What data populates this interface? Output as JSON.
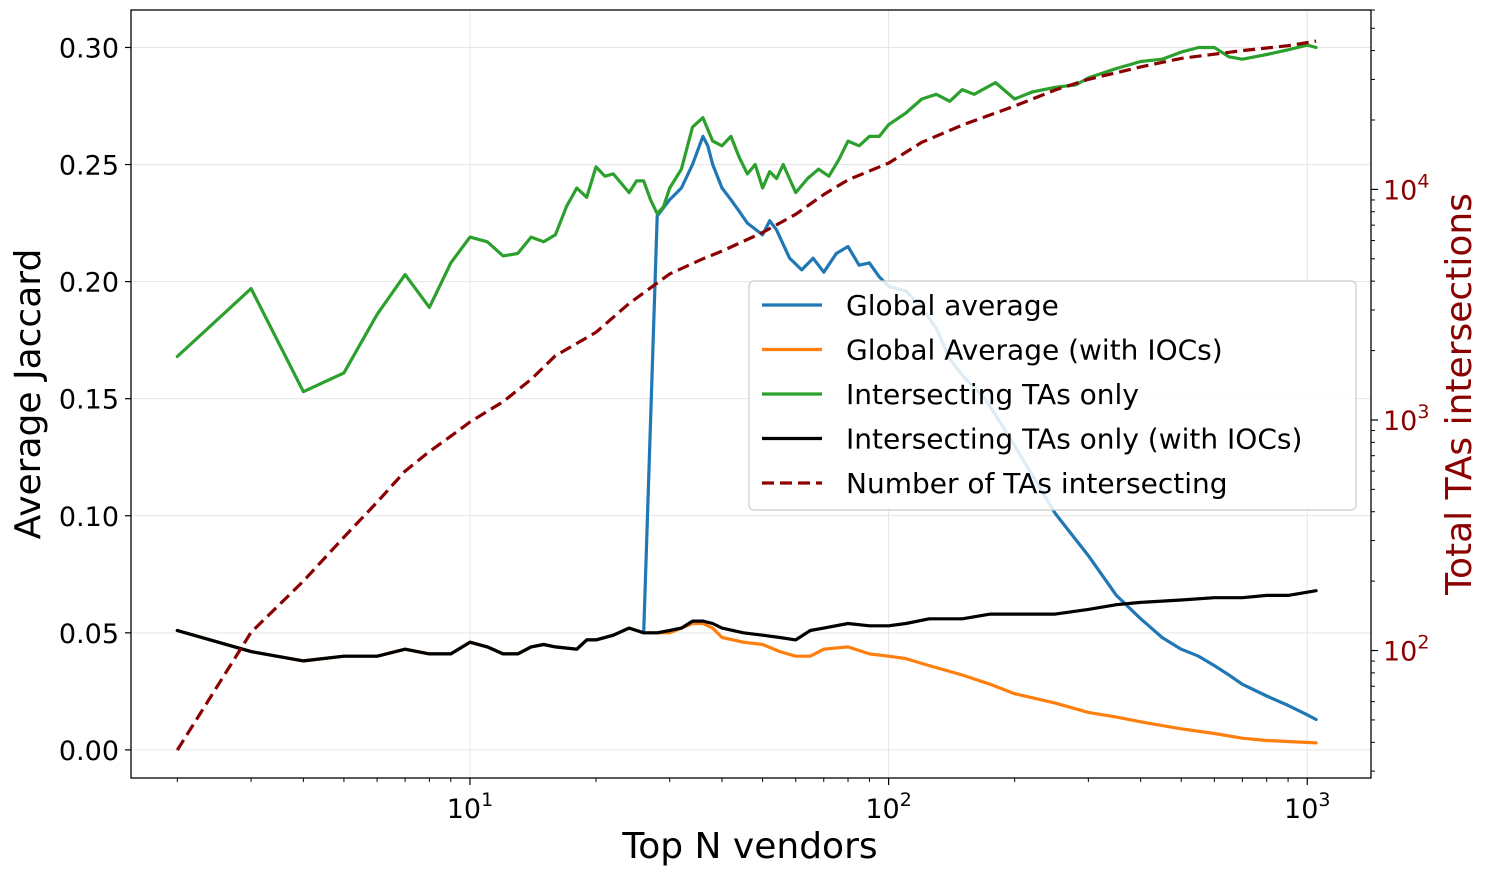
{
  "chart_data": {
    "type": "line",
    "xlabel": "Top N vendors",
    "ylabel": "Average Jaccard",
    "ylabel_right": "Total TAs intersections",
    "x_scale": "log",
    "y_right_scale": "log",
    "xlim": [
      1.55,
      1420
    ],
    "ylim": [
      -0.012,
      0.316
    ],
    "ylim_right": [
      28,
      60000
    ],
    "x_ticks": [
      {
        "value": 10,
        "base": "10",
        "exp": "1"
      },
      {
        "value": 100,
        "base": "10",
        "exp": "2"
      },
      {
        "value": 1000,
        "base": "10",
        "exp": "3"
      }
    ],
    "y_ticks": [
      0.0,
      0.05,
      0.1,
      0.15,
      0.2,
      0.25,
      0.3
    ],
    "y_tick_labels": [
      "0.00",
      "0.05",
      "0.10",
      "0.15",
      "0.20",
      "0.25",
      "0.30"
    ],
    "y_right_ticks": [
      {
        "value": 100,
        "base": "10",
        "exp": "2"
      },
      {
        "value": 1000,
        "base": "10",
        "exp": "3"
      },
      {
        "value": 10000,
        "base": "10",
        "exp": "4"
      }
    ],
    "grid": true,
    "legend_position": "center-right",
    "series": [
      {
        "name": "Global average",
        "color": "#1f77b4",
        "style": "solid",
        "axis": "left",
        "points": [
          [
            2,
            0.051
          ],
          [
            3,
            0.042
          ],
          [
            4,
            0.038
          ],
          [
            5,
            0.04
          ],
          [
            6,
            0.04
          ],
          [
            7,
            0.043
          ],
          [
            8,
            0.041
          ],
          [
            9,
            0.041
          ],
          [
            10,
            0.046
          ],
          [
            11,
            0.044
          ],
          [
            12,
            0.041
          ],
          [
            13,
            0.041
          ],
          [
            14,
            0.044
          ],
          [
            15,
            0.045
          ],
          [
            16,
            0.044
          ],
          [
            18,
            0.043
          ],
          [
            19,
            0.047
          ],
          [
            20,
            0.047
          ],
          [
            22,
            0.049
          ],
          [
            24,
            0.052
          ],
          [
            26,
            0.05
          ],
          [
            28,
            0.228
          ],
          [
            30,
            0.235
          ],
          [
            32,
            0.24
          ],
          [
            34,
            0.25
          ],
          [
            36,
            0.262
          ],
          [
            37,
            0.258
          ],
          [
            38,
            0.25
          ],
          [
            40,
            0.24
          ],
          [
            42,
            0.235
          ],
          [
            44,
            0.23
          ],
          [
            46,
            0.225
          ],
          [
            50,
            0.22
          ],
          [
            52,
            0.226
          ],
          [
            54,
            0.222
          ],
          [
            58,
            0.21
          ],
          [
            62,
            0.205
          ],
          [
            66,
            0.21
          ],
          [
            70,
            0.204
          ],
          [
            75,
            0.212
          ],
          [
            80,
            0.215
          ],
          [
            85,
            0.207
          ],
          [
            90,
            0.208
          ],
          [
            95,
            0.202
          ],
          [
            100,
            0.198
          ],
          [
            110,
            0.196
          ],
          [
            120,
            0.189
          ],
          [
            130,
            0.18
          ],
          [
            140,
            0.167
          ],
          [
            150,
            0.16
          ],
          [
            170,
            0.15
          ],
          [
            200,
            0.13
          ],
          [
            250,
            0.101
          ],
          [
            300,
            0.083
          ],
          [
            350,
            0.066
          ],
          [
            400,
            0.056
          ],
          [
            450,
            0.048
          ],
          [
            500,
            0.043
          ],
          [
            550,
            0.04
          ],
          [
            600,
            0.036
          ],
          [
            650,
            0.032
          ],
          [
            700,
            0.028
          ],
          [
            800,
            0.023
          ],
          [
            900,
            0.019
          ],
          [
            1000,
            0.015
          ],
          [
            1050,
            0.013
          ]
        ]
      },
      {
        "name": "Global Average (with IOCs)",
        "color": "#ff7f0e",
        "style": "solid",
        "axis": "left",
        "points": [
          [
            2,
            0.051
          ],
          [
            3,
            0.042
          ],
          [
            4,
            0.038
          ],
          [
            5,
            0.04
          ],
          [
            6,
            0.04
          ],
          [
            7,
            0.043
          ],
          [
            8,
            0.041
          ],
          [
            9,
            0.041
          ],
          [
            10,
            0.046
          ],
          [
            11,
            0.044
          ],
          [
            12,
            0.041
          ],
          [
            13,
            0.041
          ],
          [
            14,
            0.044
          ],
          [
            15,
            0.045
          ],
          [
            16,
            0.044
          ],
          [
            18,
            0.043
          ],
          [
            19,
            0.047
          ],
          [
            20,
            0.047
          ],
          [
            22,
            0.049
          ],
          [
            24,
            0.052
          ],
          [
            26,
            0.05
          ],
          [
            28,
            0.05
          ],
          [
            30,
            0.05
          ],
          [
            32,
            0.052
          ],
          [
            34,
            0.054
          ],
          [
            36,
            0.054
          ],
          [
            38,
            0.052
          ],
          [
            40,
            0.048
          ],
          [
            45,
            0.046
          ],
          [
            50,
            0.045
          ],
          [
            55,
            0.042
          ],
          [
            60,
            0.04
          ],
          [
            65,
            0.04
          ],
          [
            70,
            0.043
          ],
          [
            80,
            0.044
          ],
          [
            90,
            0.041
          ],
          [
            100,
            0.04
          ],
          [
            110,
            0.039
          ],
          [
            125,
            0.036
          ],
          [
            150,
            0.032
          ],
          [
            175,
            0.028
          ],
          [
            200,
            0.024
          ],
          [
            250,
            0.02
          ],
          [
            300,
            0.016
          ],
          [
            350,
            0.014
          ],
          [
            400,
            0.012
          ],
          [
            500,
            0.009
          ],
          [
            600,
            0.007
          ],
          [
            700,
            0.005
          ],
          [
            800,
            0.004
          ],
          [
            1050,
            0.003
          ]
        ]
      },
      {
        "name": "Intersecting TAs only",
        "color": "#2ca02c",
        "style": "solid",
        "axis": "left",
        "points": [
          [
            2,
            0.168
          ],
          [
            3,
            0.197
          ],
          [
            4,
            0.153
          ],
          [
            5,
            0.161
          ],
          [
            6,
            0.186
          ],
          [
            7,
            0.203
          ],
          [
            8,
            0.189
          ],
          [
            9,
            0.208
          ],
          [
            10,
            0.219
          ],
          [
            11,
            0.217
          ],
          [
            12,
            0.211
          ],
          [
            13,
            0.212
          ],
          [
            14,
            0.219
          ],
          [
            15,
            0.217
          ],
          [
            16,
            0.22
          ],
          [
            17,
            0.232
          ],
          [
            18,
            0.24
          ],
          [
            19,
            0.236
          ],
          [
            20,
            0.249
          ],
          [
            21,
            0.245
          ],
          [
            22,
            0.246
          ],
          [
            24,
            0.238
          ],
          [
            25,
            0.243
          ],
          [
            26,
            0.243
          ],
          [
            27,
            0.235
          ],
          [
            28,
            0.229
          ],
          [
            29,
            0.232
          ],
          [
            30,
            0.24
          ],
          [
            32,
            0.248
          ],
          [
            34,
            0.266
          ],
          [
            36,
            0.27
          ],
          [
            38,
            0.26
          ],
          [
            40,
            0.258
          ],
          [
            42,
            0.262
          ],
          [
            44,
            0.253
          ],
          [
            46,
            0.246
          ],
          [
            48,
            0.25
          ],
          [
            50,
            0.24
          ],
          [
            52,
            0.247
          ],
          [
            54,
            0.244
          ],
          [
            56,
            0.25
          ],
          [
            60,
            0.238
          ],
          [
            64,
            0.244
          ],
          [
            68,
            0.248
          ],
          [
            72,
            0.245
          ],
          [
            76,
            0.252
          ],
          [
            80,
            0.26
          ],
          [
            85,
            0.258
          ],
          [
            90,
            0.262
          ],
          [
            95,
            0.262
          ],
          [
            100,
            0.267
          ],
          [
            110,
            0.272
          ],
          [
            120,
            0.278
          ],
          [
            130,
            0.28
          ],
          [
            140,
            0.277
          ],
          [
            150,
            0.282
          ],
          [
            160,
            0.28
          ],
          [
            180,
            0.285
          ],
          [
            200,
            0.278
          ],
          [
            220,
            0.281
          ],
          [
            250,
            0.283
          ],
          [
            280,
            0.284
          ],
          [
            300,
            0.287
          ],
          [
            350,
            0.291
          ],
          [
            400,
            0.294
          ],
          [
            450,
            0.295
          ],
          [
            500,
            0.298
          ],
          [
            550,
            0.3
          ],
          [
            600,
            0.3
          ],
          [
            650,
            0.296
          ],
          [
            700,
            0.295
          ],
          [
            800,
            0.297
          ],
          [
            900,
            0.299
          ],
          [
            1000,
            0.301
          ],
          [
            1050,
            0.3
          ]
        ]
      },
      {
        "name": "Intersecting TAs only (with IOCs)",
        "color": "#000000",
        "style": "solid",
        "axis": "left",
        "points": [
          [
            2,
            0.051
          ],
          [
            3,
            0.042
          ],
          [
            4,
            0.038
          ],
          [
            5,
            0.04
          ],
          [
            6,
            0.04
          ],
          [
            7,
            0.043
          ],
          [
            8,
            0.041
          ],
          [
            9,
            0.041
          ],
          [
            10,
            0.046
          ],
          [
            11,
            0.044
          ],
          [
            12,
            0.041
          ],
          [
            13,
            0.041
          ],
          [
            14,
            0.044
          ],
          [
            15,
            0.045
          ],
          [
            16,
            0.044
          ],
          [
            18,
            0.043
          ],
          [
            19,
            0.047
          ],
          [
            20,
            0.047
          ],
          [
            22,
            0.049
          ],
          [
            24,
            0.052
          ],
          [
            26,
            0.05
          ],
          [
            28,
            0.05
          ],
          [
            30,
            0.051
          ],
          [
            32,
            0.052
          ],
          [
            34,
            0.055
          ],
          [
            36,
            0.055
          ],
          [
            38,
            0.054
          ],
          [
            40,
            0.052
          ],
          [
            45,
            0.05
          ],
          [
            50,
            0.049
          ],
          [
            55,
            0.048
          ],
          [
            60,
            0.047
          ],
          [
            65,
            0.051
          ],
          [
            70,
            0.052
          ],
          [
            80,
            0.054
          ],
          [
            90,
            0.053
          ],
          [
            100,
            0.053
          ],
          [
            110,
            0.054
          ],
          [
            125,
            0.056
          ],
          [
            150,
            0.056
          ],
          [
            175,
            0.058
          ],
          [
            200,
            0.058
          ],
          [
            250,
            0.058
          ],
          [
            300,
            0.06
          ],
          [
            350,
            0.062
          ],
          [
            400,
            0.063
          ],
          [
            500,
            0.064
          ],
          [
            600,
            0.065
          ],
          [
            700,
            0.065
          ],
          [
            800,
            0.066
          ],
          [
            900,
            0.066
          ],
          [
            1050,
            0.068
          ]
        ]
      },
      {
        "name": "Number of TAs intersecting",
        "color": "#8b0000",
        "style": "dashed",
        "axis": "right",
        "points": [
          [
            2,
            37
          ],
          [
            3,
            120
          ],
          [
            4,
            200
          ],
          [
            5,
            310
          ],
          [
            6,
            440
          ],
          [
            7,
            600
          ],
          [
            8,
            730
          ],
          [
            9,
            850
          ],
          [
            10,
            980
          ],
          [
            12,
            1200
          ],
          [
            14,
            1500
          ],
          [
            16,
            1900
          ],
          [
            20,
            2400
          ],
          [
            24,
            3200
          ],
          [
            30,
            4300
          ],
          [
            36,
            5000
          ],
          [
            40,
            5400
          ],
          [
            50,
            6500
          ],
          [
            60,
            7800
          ],
          [
            70,
            9500
          ],
          [
            80,
            11000
          ],
          [
            100,
            13000
          ],
          [
            120,
            16000
          ],
          [
            150,
            19000
          ],
          [
            200,
            23000
          ],
          [
            250,
            27000
          ],
          [
            300,
            30000
          ],
          [
            400,
            34000
          ],
          [
            500,
            37000
          ],
          [
            700,
            40000
          ],
          [
            900,
            42000
          ],
          [
            1050,
            44000
          ]
        ]
      }
    ]
  }
}
